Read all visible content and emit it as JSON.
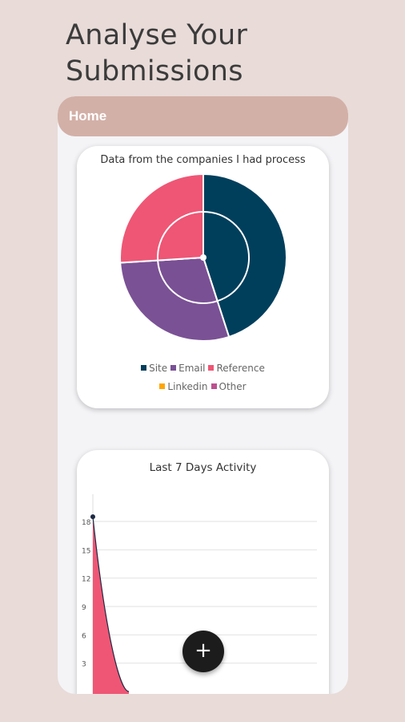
{
  "page": {
    "title_line1": "Analyse Your",
    "title_line2": "Submissions"
  },
  "nav": {
    "home_label": "Home"
  },
  "fab": {
    "icon": "plus-icon",
    "label": "+"
  },
  "chart_data": [
    {
      "type": "pie",
      "title": "Data from the companies I had process",
      "categories": [
        "Site",
        "Email",
        "Reference",
        "Linkedin",
        "Other"
      ],
      "values": [
        45,
        29,
        26,
        0,
        0
      ],
      "colors": [
        "#003f5c",
        "#7a5195",
        "#ef5675",
        "#ffa600",
        "#bc5090"
      ],
      "legend_position": "bottom"
    },
    {
      "type": "area",
      "title": "Last 7 Days Activity",
      "x": [
        0,
        1
      ],
      "values": [
        18.5,
        0
      ],
      "yticks": [
        "3",
        "6",
        "9",
        "12",
        "15",
        "18"
      ],
      "ylim": [
        0,
        18
      ],
      "grid": true,
      "color": "#ef5675"
    }
  ]
}
